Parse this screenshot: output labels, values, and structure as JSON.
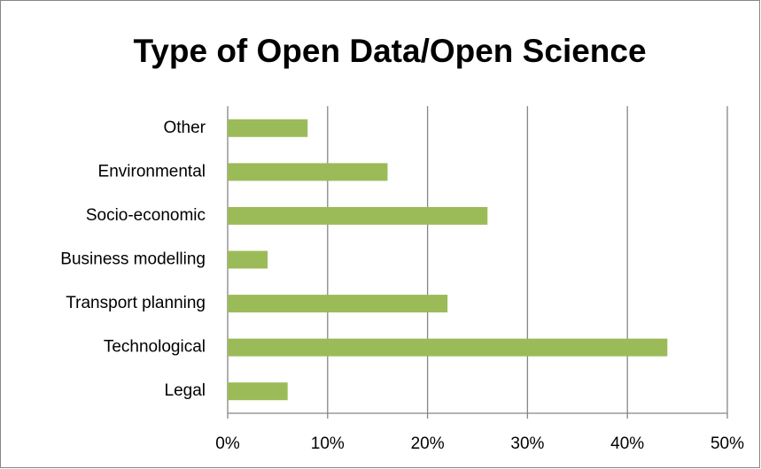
{
  "chart_data": {
    "type": "bar",
    "orientation": "horizontal",
    "title": "Type of Open Data/Open Science",
    "categories": [
      "Other",
      "Environmental",
      "Socio-economic",
      "Business modelling",
      "Transport planning",
      "Technological",
      "Legal"
    ],
    "values": [
      8,
      16,
      26,
      4,
      22,
      44,
      6
    ],
    "color": "#9bbb59",
    "xlim": [
      0,
      50
    ],
    "xticks": [
      {
        "value": 0,
        "label": "0%"
      },
      {
        "value": 10,
        "label": "10%"
      },
      {
        "value": 20,
        "label": "20%"
      },
      {
        "value": 30,
        "label": "30%"
      },
      {
        "value": 40,
        "label": "40%"
      },
      {
        "value": 50,
        "label": "50%"
      }
    ],
    "grid": true
  }
}
